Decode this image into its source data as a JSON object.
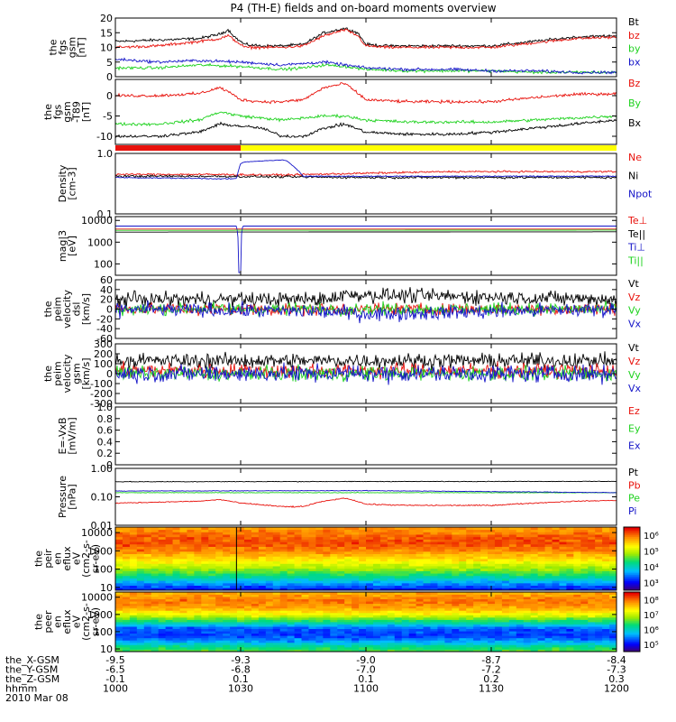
{
  "title": "P4 (TH-E) fields and on-board moments overview",
  "colors": {
    "black": "#000000",
    "red": "#e8120c",
    "green": "#1ed21e",
    "blue": "#1414c8",
    "orange": "#ff8c00",
    "yellow": "#ffff00"
  },
  "chart_data": [
    {
      "id": "fgs_gsm",
      "type": "line",
      "ylabel": [
        "the",
        "fgs",
        "gsm",
        "[nT]"
      ],
      "ylim": [
        0,
        20
      ],
      "yticks": [
        "0",
        "5",
        "10",
        "15",
        "20"
      ],
      "ytick_values": [
        0,
        5,
        10,
        15,
        20
      ],
      "legend": [
        "Bt",
        "bz",
        "by",
        "bx"
      ],
      "series": [
        {
          "name": "Bt",
          "color": "black",
          "noise": 0.4,
          "x": [
            1000,
            1010,
            1020,
            1025,
            1027,
            1029,
            1031,
            1035,
            1040,
            1045,
            1050,
            1055,
            1058,
            1100,
            1105,
            1110,
            1120,
            1130,
            1140,
            1150,
            1200
          ],
          "values": [
            12,
            12.5,
            13,
            14.5,
            16,
            13,
            11,
            10.5,
            10.5,
            11,
            15,
            16.5,
            15,
            11,
            10.5,
            10.5,
            10.5,
            10.5,
            12,
            13.5,
            14
          ]
        },
        {
          "name": "bz",
          "color": "red",
          "noise": 0.4,
          "x": [
            1000,
            1010,
            1020,
            1025,
            1027,
            1029,
            1031,
            1035,
            1040,
            1045,
            1050,
            1055,
            1058,
            1100,
            1105,
            1110,
            1120,
            1130,
            1140,
            1150,
            1200
          ],
          "values": [
            10,
            10.5,
            12,
            13,
            14,
            12,
            10,
            10,
            10,
            10.5,
            14,
            16,
            14,
            10.5,
            10,
            10,
            10,
            10,
            11.5,
            13,
            13.5
          ]
        },
        {
          "name": "by",
          "color": "green",
          "noise": 0.4,
          "x": [
            1000,
            1010,
            1020,
            1030,
            1040,
            1045,
            1050,
            1055,
            1100,
            1110,
            1120,
            1130,
            1140,
            1150,
            1200
          ],
          "values": [
            3,
            3,
            4,
            3.5,
            2.5,
            3,
            4,
            3.5,
            2.5,
            2,
            2,
            2,
            1.5,
            1.5,
            1.5
          ]
        },
        {
          "name": "bx",
          "color": "blue",
          "noise": 0.4,
          "x": [
            1000,
            1010,
            1020,
            1030,
            1040,
            1045,
            1050,
            1055,
            1100,
            1110,
            1120,
            1130,
            1140,
            1150,
            1200
          ],
          "values": [
            6,
            5,
            5.5,
            5,
            4,
            4.5,
            5,
            4,
            3,
            2.5,
            2.5,
            2,
            2,
            1.5,
            1.5
          ]
        }
      ]
    },
    {
      "id": "fgs_gsm_dip",
      "type": "line",
      "ylabel": [
        "the",
        "fgs",
        "gsm",
        "-T89",
        "[nT]"
      ],
      "ylim": [
        -12,
        4
      ],
      "yticks": [
        "-10",
        "-5",
        "0"
      ],
      "ytick_values": [
        -10,
        -5,
        0
      ],
      "legend": [
        "Bz",
        "By",
        "Bx"
      ],
      "series": [
        {
          "name": "Bz",
          "color": "red",
          "noise": 0.3,
          "x": [
            1000,
            1010,
            1020,
            1025,
            1027,
            1030,
            1035,
            1040,
            1045,
            1050,
            1055,
            1100,
            1110,
            1120,
            1130,
            1140,
            1150,
            1200
          ],
          "values": [
            0,
            0,
            0.5,
            2,
            1,
            -1,
            -1.5,
            -1.5,
            -1,
            2,
            3,
            -1,
            -1.5,
            -1.5,
            -1.5,
            -0.5,
            0.3,
            0.5
          ]
        },
        {
          "name": "By",
          "color": "green",
          "noise": 0.3,
          "x": [
            1000,
            1010,
            1020,
            1025,
            1030,
            1035,
            1040,
            1045,
            1050,
            1055,
            1100,
            1110,
            1120,
            1130,
            1140,
            1150,
            1200
          ],
          "values": [
            -7,
            -7,
            -6,
            -4,
            -5,
            -5.5,
            -6,
            -5.5,
            -5,
            -5,
            -6,
            -6.5,
            -6.5,
            -6.5,
            -6,
            -5.5,
            -5
          ]
        },
        {
          "name": "Bx",
          "color": "black",
          "noise": 0.3,
          "x": [
            1000,
            1010,
            1020,
            1025,
            1030,
            1035,
            1040,
            1045,
            1050,
            1055,
            1100,
            1110,
            1120,
            1130,
            1140,
            1150,
            1200
          ],
          "values": [
            -10,
            -10,
            -9,
            -7,
            -7.5,
            -8,
            -10,
            -10,
            -8,
            -7,
            -9,
            -9.5,
            -9.5,
            -9,
            -8,
            -7,
            -6
          ]
        }
      ]
    },
    {
      "id": "mode_bar",
      "type": "bar",
      "segments": [
        {
          "x0": 1000,
          "x1": 1030,
          "color": "red"
        },
        {
          "x0": 1030,
          "x1": 1200,
          "color": "yellow"
        }
      ]
    },
    {
      "id": "density",
      "type": "line",
      "ylabel": [
        "Density",
        "[cm-3]"
      ],
      "yscale": "log",
      "ylim": [
        0.1,
        1.0
      ],
      "yticks": [
        "0.1",
        "1.0"
      ],
      "ytick_values": [
        0.1,
        1.0
      ],
      "legend": [
        "Ne",
        "Ni",
        "Npot"
      ],
      "series": [
        {
          "name": "Ne",
          "color": "red",
          "noise": 0.02,
          "x": [
            1000,
            1020,
            1040,
            1100,
            1120,
            1140,
            1200
          ],
          "values": [
            0.45,
            0.45,
            0.44,
            0.47,
            0.5,
            0.5,
            0.5
          ]
        },
        {
          "name": "Ni",
          "color": "black",
          "noise": 0.08,
          "x": [
            1000,
            1020,
            1040,
            1100,
            1120,
            1140,
            1200
          ],
          "values": [
            0.42,
            0.42,
            0.41,
            0.4,
            0.4,
            0.4,
            0.4
          ]
        },
        {
          "name": "Npot",
          "color": "blue",
          "noise": 0.01,
          "x": [
            1000,
            1028,
            1029,
            1030,
            1031,
            1035,
            1040,
            1041,
            1045,
            1100,
            1200
          ],
          "values": [
            0.4,
            0.38,
            0.38,
            0.68,
            0.72,
            0.75,
            0.78,
            0.75,
            0.42,
            0.42,
            0.42
          ]
        }
      ]
    },
    {
      "id": "temperature",
      "type": "line",
      "ylabel": [
        "mag|3",
        "[eV]"
      ],
      "yscale": "log",
      "ylim": [
        30,
        15000
      ],
      "yticks": [
        "100",
        "1000",
        "10000"
      ],
      "ytick_values": [
        100,
        1000,
        10000
      ],
      "legend": [
        "Te⊥",
        "Te||",
        "Ti⊥",
        "Ti||"
      ],
      "series": [
        {
          "name": "Te⊥",
          "color": "red",
          "noise": 0.04,
          "x": [
            1000,
            1200
          ],
          "values": [
            4000,
            4000
          ]
        },
        {
          "name": "Te||",
          "color": "black",
          "noise": 0.04,
          "x": [
            1000,
            1200
          ],
          "values": [
            2900,
            3000
          ]
        },
        {
          "name": "Ti⊥",
          "color": "blue",
          "noise": 0.05,
          "x": [
            1000,
            1029,
            1029.5,
            1030,
            1030.5,
            1200
          ],
          "values": [
            5500,
            5500,
            40,
            40,
            5500,
            5500
          ]
        },
        {
          "name": "Ti||",
          "color": "green",
          "noise": 0.04,
          "x": [
            1000,
            1200
          ],
          "values": [
            3500,
            3600
          ]
        }
      ]
    },
    {
      "id": "peim_velocity_fac",
      "type": "line",
      "ylabel": [
        "the",
        "peim",
        "velocity",
        "dsl",
        "[km/s]"
      ],
      "ylim": [
        -60,
        60
      ],
      "yticks": [
        "-60",
        "-40",
        "-20",
        "0",
        "20",
        "40",
        "60"
      ],
      "ytick_values": [
        -60,
        -40,
        -20,
        0,
        20,
        40,
        60
      ],
      "legend": [
        "Vt",
        "Vz",
        "Vy",
        "Vx"
      ],
      "series": [
        {
          "name": "Vt",
          "color": "black",
          "noise": 12,
          "x": [
            1000,
            1050,
            1055,
            1200
          ],
          "values": [
            20,
            20,
            30,
            20
          ]
        },
        {
          "name": "Vz",
          "color": "red",
          "noise": 10,
          "x": [
            1000,
            1200
          ],
          "values": [
            0,
            0
          ]
        },
        {
          "name": "Vy",
          "color": "green",
          "noise": 10,
          "x": [
            1000,
            1200
          ],
          "values": [
            0,
            0
          ]
        },
        {
          "name": "Vx",
          "color": "blue",
          "noise": 12,
          "x": [
            1000,
            1050,
            1100,
            1200
          ],
          "values": [
            0,
            -5,
            -10,
            0
          ]
        }
      ]
    },
    {
      "id": "peim_velocity_gsm",
      "type": "line",
      "ylabel": [
        "the",
        "peim",
        "velocity",
        "gsm",
        "[km/s]"
      ],
      "ylim": [
        -300,
        300
      ],
      "yticks": [
        "-300",
        "-200",
        "-100",
        "0",
        "100",
        "200",
        "300"
      ],
      "ytick_values": [
        -300,
        -200,
        -100,
        0,
        100,
        200,
        300
      ],
      "legend": [
        "Vt",
        "Vz",
        "Vy",
        "Vx"
      ],
      "series": [
        {
          "name": "Vt",
          "color": "black",
          "noise": 60,
          "x": [
            1000,
            1200
          ],
          "values": [
            130,
            130
          ]
        },
        {
          "name": "Vz",
          "color": "red",
          "noise": 60,
          "x": [
            1000,
            1200
          ],
          "values": [
            30,
            30
          ]
        },
        {
          "name": "Vy",
          "color": "green",
          "noise": 60,
          "x": [
            1000,
            1200
          ],
          "values": [
            0,
            0
          ]
        },
        {
          "name": "Vx",
          "color": "blue",
          "noise": 70,
          "x": [
            1000,
            1200
          ],
          "values": [
            0,
            0
          ]
        }
      ]
    },
    {
      "id": "e_field",
      "type": "line",
      "ylabel": [
        "E=-VxB",
        "[mV/m]"
      ],
      "ylim": [
        0,
        1.0
      ],
      "yticks": [
        "0",
        "0.2",
        "0.4",
        "0.6",
        "0.8",
        "1.0"
      ],
      "ytick_values": [
        0,
        0.2,
        0.4,
        0.6,
        0.8,
        1.0
      ],
      "legend": [
        "Ez",
        "Ey",
        "Ex"
      ],
      "series": []
    },
    {
      "id": "pressure",
      "type": "line",
      "ylabel": [
        "Pressure",
        "[nPa]"
      ],
      "yscale": "log",
      "ylim": [
        0.01,
        1.0
      ],
      "yticks": [
        "0.01",
        "0.10",
        "1.00"
      ],
      "ytick_values": [
        0.01,
        0.1,
        1.0
      ],
      "legend": [
        "Pt",
        "Pb",
        "Pe",
        "Pi"
      ],
      "series": [
        {
          "name": "Pt",
          "color": "black",
          "noise": 0.01,
          "x": [
            1000,
            1200
          ],
          "values": [
            0.34,
            0.35
          ]
        },
        {
          "name": "Pb",
          "color": "red",
          "noise": 0.003,
          "x": [
            1000,
            1010,
            1020,
            1025,
            1030,
            1040,
            1045,
            1050,
            1055,
            1100,
            1110,
            1130,
            1150,
            1200
          ],
          "values": [
            0.06,
            0.065,
            0.07,
            0.08,
            0.06,
            0.045,
            0.045,
            0.07,
            0.09,
            0.055,
            0.05,
            0.05,
            0.07,
            0.075
          ]
        },
        {
          "name": "Pe",
          "color": "green",
          "noise": 0.004,
          "x": [
            1000,
            1200
          ],
          "values": [
            0.14,
            0.14
          ]
        },
        {
          "name": "Pi",
          "color": "blue",
          "noise": 0.005,
          "x": [
            1000,
            1100,
            1200
          ],
          "values": [
            0.16,
            0.165,
            0.14
          ]
        }
      ]
    },
    {
      "id": "peir_spectrogram",
      "type": "heatmap",
      "ylabel": [
        "the",
        "peir",
        "en",
        "eflux",
        "eV",
        "(cm2-s-",
        "sr-eV)"
      ],
      "yscale": "log",
      "ylim": [
        7,
        20000
      ],
      "yticks": [
        "10",
        "100",
        "1000",
        "10000"
      ],
      "ytick_values": [
        10,
        100,
        1000,
        10000
      ],
      "colorbar": {
        "ticks": [
          "10³",
          "10⁴",
          "10⁵",
          "10⁶"
        ],
        "range_log": [
          2.5,
          6.5
        ]
      },
      "profile": {
        "y_log": [
          0.85,
          1.2,
          1.6,
          2.0,
          2.5,
          3.0,
          3.4,
          3.8,
          4.3
        ],
        "z_log": [
          3.0,
          3.5,
          4.2,
          4.8,
          5.4,
          5.9,
          6.2,
          6.1,
          5.8
        ]
      },
      "marker_x": 1029
    },
    {
      "id": "peer_spectrogram",
      "type": "heatmap",
      "ylabel": [
        "the",
        "peer",
        "en",
        "eflux",
        "eV",
        "(cm2-s-",
        "sr-eV)"
      ],
      "yscale": "log",
      "ylim": [
        7,
        20000
      ],
      "yticks": [
        "10",
        "100",
        "1000",
        "10000"
      ],
      "ytick_values": [
        10,
        100,
        1000,
        10000
      ],
      "colorbar": {
        "ticks": [
          "10⁵",
          "10⁶",
          "10⁷",
          "10⁸"
        ],
        "range_log": [
          4.6,
          8.6
        ]
      },
      "profile": {
        "y_log": [
          0.85,
          1.2,
          1.5,
          1.8,
          2.2,
          2.6,
          3.0,
          3.4,
          3.8,
          4.3
        ],
        "z_log": [
          6.7,
          6.2,
          5.6,
          5.3,
          5.4,
          6.4,
          7.3,
          7.9,
          8.1,
          7.8
        ]
      }
    }
  ],
  "xaxis": {
    "ticks": [
      1000,
      1030,
      1100,
      1130,
      1200
    ],
    "rows": [
      {
        "label": "the_X-GSM",
        "values": [
          "-9.5",
          "-9.3",
          "-9.0",
          "-8.7",
          "-8.4"
        ]
      },
      {
        "label": "the_Y-GSM",
        "values": [
          "-6.5",
          "-6.8",
          "-7.0",
          "-7.2",
          "-7.3"
        ]
      },
      {
        "label": "the_Z-GSM",
        "values": [
          "-0.1",
          "0.1",
          "0.1",
          "0.2",
          "0.3"
        ]
      },
      {
        "label": "hhmm",
        "values": [
          "1000",
          "1030",
          "1100",
          "1130",
          "1200"
        ]
      }
    ],
    "date": "2010 Mar 08"
  }
}
